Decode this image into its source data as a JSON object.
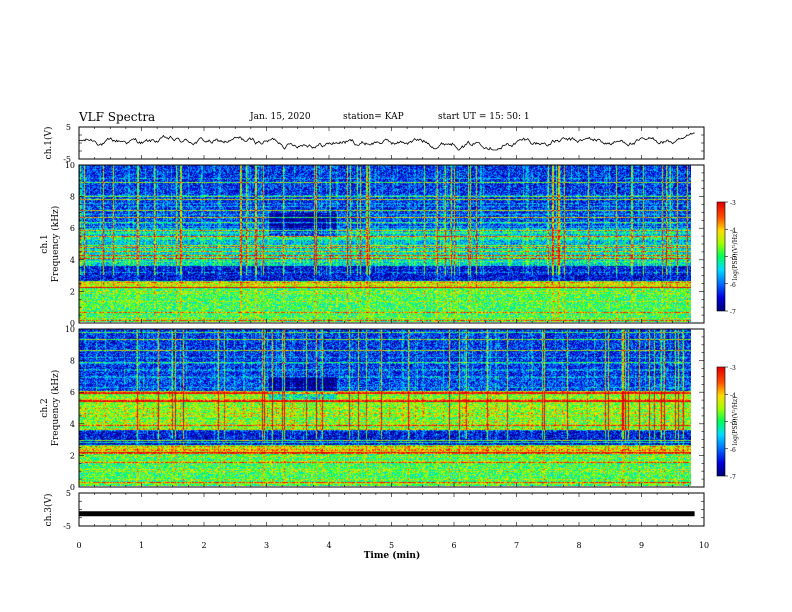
{
  "header": {
    "title": "VLF Spectra",
    "date": "Jan. 15, 2020",
    "station": "station= KAP",
    "start_ut": "start UT =  15: 50: 1"
  },
  "chart_data": [
    {
      "type": "line",
      "panel": "ch1-waveform",
      "ylabel": "ch.1(V)",
      "ylim": [
        -5,
        5
      ],
      "yticks": [
        "5",
        "-5"
      ],
      "xlim": [
        0,
        10
      ],
      "color": "#000000",
      "description_values": "noisy waveform oscillating approximately between -1.5 V and 2.5 V over 0–9.85 min",
      "x_end": 9.85
    },
    {
      "type": "heatmap",
      "panel": "ch1-spectrogram",
      "ylabel": "Frequency (kHz)",
      "channel_label": "ch.1",
      "ylim": [
        0,
        10
      ],
      "yticks": [
        "0",
        "2",
        "4",
        "6",
        "8",
        "10"
      ],
      "xlim": [
        0,
        10
      ],
      "x_end": 9.85,
      "colorbar": {
        "label": "log(PSD)(V²/Hz)",
        "range": [
          -7,
          -3
        ],
        "ticks": [
          "-3",
          "-4",
          "-5",
          "-6",
          "-7"
        ]
      }
    },
    {
      "type": "heatmap",
      "panel": "ch2-spectrogram",
      "ylabel": "Frequency (kHz)",
      "channel_label": "ch.2",
      "ylim": [
        0,
        10
      ],
      "yticks": [
        "0",
        "2",
        "4",
        "6",
        "8",
        "10"
      ],
      "xlim": [
        0,
        10
      ],
      "x_end": 9.85,
      "colorbar": {
        "label": "log(PSD)(V²/Hz)",
        "range": [
          -7,
          -3
        ],
        "ticks": [
          "-3",
          "-4",
          "-5",
          "-6",
          "-7"
        ]
      }
    },
    {
      "type": "line",
      "panel": "ch3-waveform",
      "ylabel": "ch.3(V)",
      "ylim": [
        -5,
        5
      ],
      "yticks": [
        "5",
        "-5"
      ],
      "xlim": [
        0,
        10
      ],
      "xlabel": "Time (min)",
      "xticks": [
        "0",
        "1",
        "2",
        "3",
        "4",
        "5",
        "6",
        "7",
        "8",
        "9",
        "10"
      ],
      "constant_value": -1.3,
      "x_end": 9.85,
      "color": "#000000"
    }
  ]
}
